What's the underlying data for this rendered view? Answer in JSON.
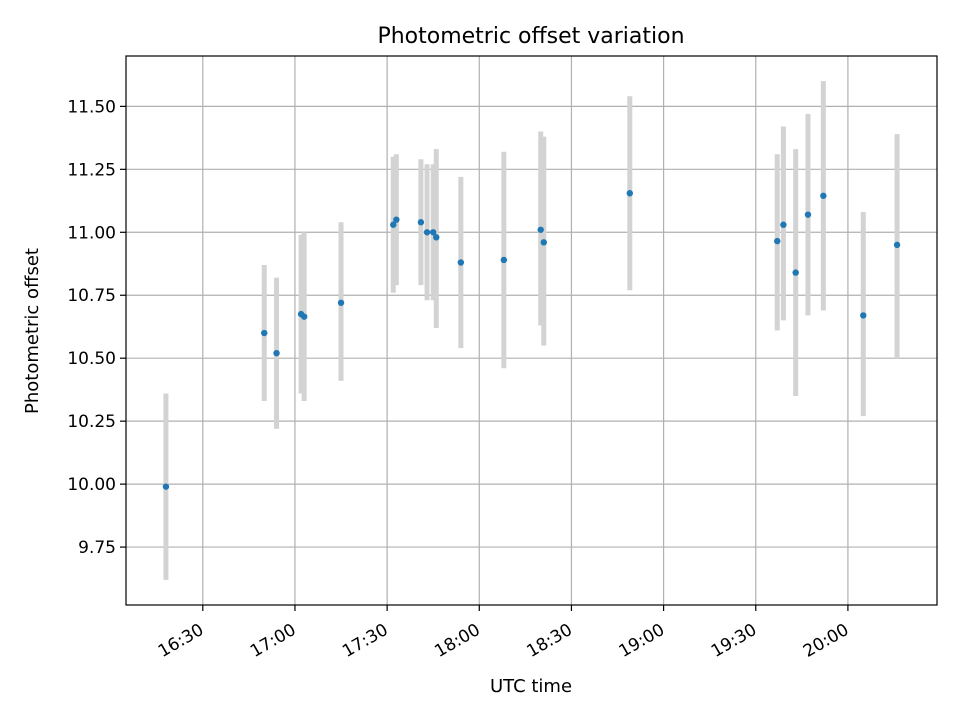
{
  "chart_data": {
    "type": "scatter",
    "title": "Photometric offset variation",
    "xlabel": "UTC time",
    "ylabel": "Photometric offset",
    "xlim": [
      "16:05",
      "20:29"
    ],
    "ylim": [
      9.52,
      11.7
    ],
    "grid": true,
    "x_ticks": [
      "16:30",
      "17:00",
      "17:30",
      "18:00",
      "18:30",
      "19:00",
      "19:30",
      "20:00"
    ],
    "y_ticks": [
      "9.75",
      "10.00",
      "10.25",
      "10.50",
      "10.75",
      "11.00",
      "11.25",
      "11.50"
    ],
    "colors": {
      "point": "#1f77b4",
      "errorbar": "#d3d3d3",
      "grid": "#b0b0b0"
    },
    "points": [
      {
        "x": "16:18",
        "y": 9.99,
        "ylow": 9.62,
        "yhigh": 10.36
      },
      {
        "x": "16:50",
        "y": 10.6,
        "ylow": 10.33,
        "yhigh": 10.87
      },
      {
        "x": "16:54",
        "y": 10.52,
        "ylow": 10.22,
        "yhigh": 10.82
      },
      {
        "x": "17:02",
        "y": 10.675,
        "ylow": 10.36,
        "yhigh": 10.99
      },
      {
        "x": "17:03",
        "y": 10.665,
        "ylow": 10.33,
        "yhigh": 11.0
      },
      {
        "x": "17:15",
        "y": 10.72,
        "ylow": 10.41,
        "yhigh": 11.04
      },
      {
        "x": "17:32",
        "y": 11.03,
        "ylow": 10.76,
        "yhigh": 11.3
      },
      {
        "x": "17:33",
        "y": 11.05,
        "ylow": 10.79,
        "yhigh": 11.31
      },
      {
        "x": "17:41",
        "y": 11.04,
        "ylow": 10.79,
        "yhigh": 11.29
      },
      {
        "x": "17:43",
        "y": 11.0,
        "ylow": 10.73,
        "yhigh": 11.27
      },
      {
        "x": "17:45",
        "y": 11.0,
        "ylow": 10.73,
        "yhigh": 11.27
      },
      {
        "x": "17:46",
        "y": 10.98,
        "ylow": 10.62,
        "yhigh": 11.33
      },
      {
        "x": "17:54",
        "y": 10.88,
        "ylow": 10.54,
        "yhigh": 11.22
      },
      {
        "x": "18:08",
        "y": 10.89,
        "ylow": 10.46,
        "yhigh": 11.32
      },
      {
        "x": "18:20",
        "y": 11.01,
        "ylow": 10.63,
        "yhigh": 11.4
      },
      {
        "x": "18:21",
        "y": 10.96,
        "ylow": 10.55,
        "yhigh": 11.38
      },
      {
        "x": "18:49",
        "y": 11.155,
        "ylow": 10.77,
        "yhigh": 11.54
      },
      {
        "x": "19:37",
        "y": 10.965,
        "ylow": 10.61,
        "yhigh": 11.31
      },
      {
        "x": "19:39",
        "y": 11.03,
        "ylow": 10.65,
        "yhigh": 11.42
      },
      {
        "x": "19:43",
        "y": 10.84,
        "ylow": 10.35,
        "yhigh": 11.33
      },
      {
        "x": "19:47",
        "y": 11.07,
        "ylow": 10.67,
        "yhigh": 11.47
      },
      {
        "x": "19:52",
        "y": 11.145,
        "ylow": 10.69,
        "yhigh": 11.6
      },
      {
        "x": "20:05",
        "y": 10.67,
        "ylow": 10.27,
        "yhigh": 11.08
      },
      {
        "x": "20:16",
        "y": 10.95,
        "ylow": 10.5,
        "yhigh": 11.39
      }
    ]
  }
}
